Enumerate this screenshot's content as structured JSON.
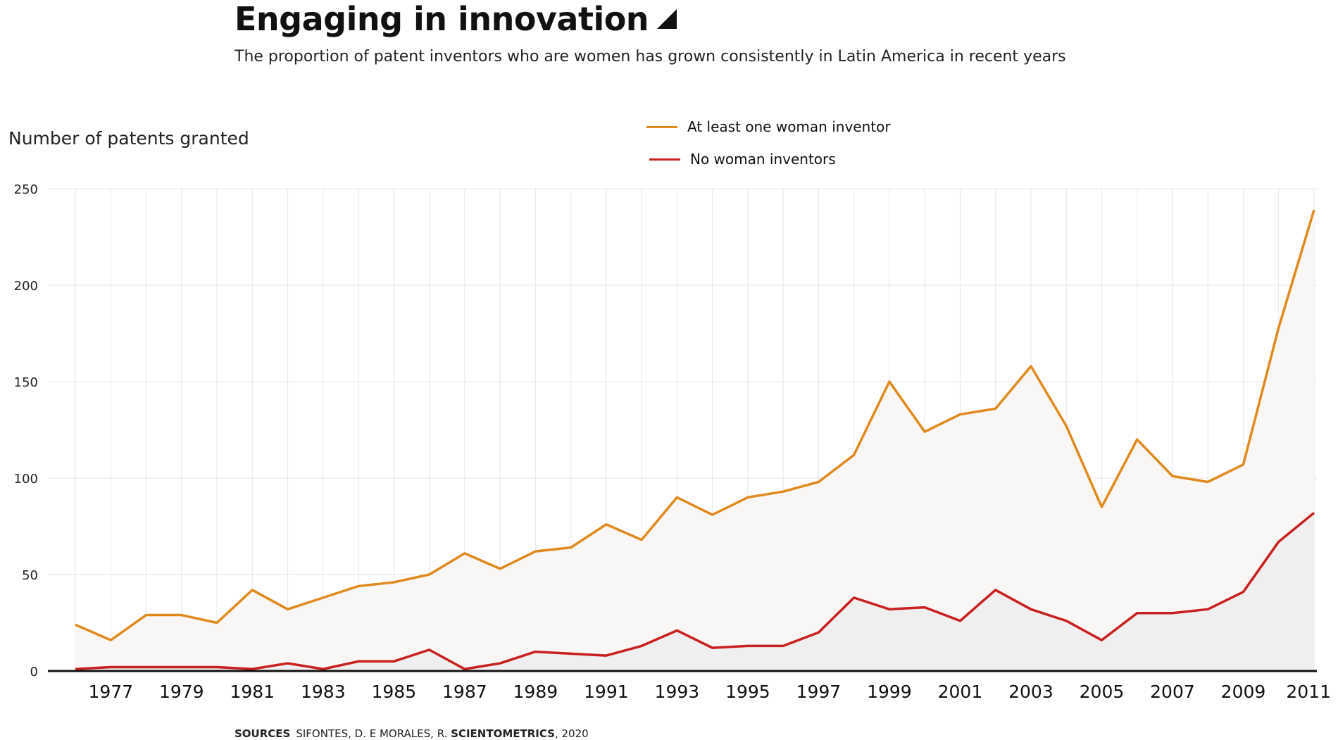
{
  "header": {
    "title": "Engaging in innovation",
    "subtitle": "The proportion of patent inventors who are women has grown consistently in Latin America in recent years"
  },
  "source": {
    "label": "SOURCES",
    "text": "SIFONTES, D. E MORALES, R.",
    "journal": "SCIENTOMETRICS",
    "year": ", 2020"
  },
  "colors": {
    "women": "#e08a1e",
    "no_women": "#c8201e",
    "grid": "#e6e6e6",
    "area_women": "#f8f7f5",
    "area_no_women": "#efefef"
  },
  "chart_data": {
    "type": "area",
    "title": "Engaging in innovation",
    "ylabel": "Number of patents granted",
    "xlabel": "",
    "ylim": [
      0,
      250
    ],
    "yticks": [
      0,
      50,
      100,
      150,
      200,
      250
    ],
    "x": [
      1976,
      1977,
      1978,
      1979,
      1980,
      1981,
      1982,
      1983,
      1984,
      1985,
      1986,
      1987,
      1988,
      1989,
      1990,
      1991,
      1992,
      1993,
      1994,
      1995,
      1996,
      1997,
      1998,
      1999,
      2000,
      2001,
      2002,
      2003,
      2004,
      2005,
      2006,
      2007,
      2008,
      2009,
      2010,
      2011
    ],
    "xtick_labels": [
      1977,
      1979,
      1981,
      1983,
      1985,
      1987,
      1989,
      1991,
      1993,
      1995,
      1997,
      1999,
      2001,
      2003,
      2005,
      2007,
      2009,
      2011
    ],
    "series": [
      {
        "name": "At least one woman inventor",
        "values": [
          24,
          16,
          29,
          29,
          25,
          42,
          32,
          38,
          44,
          46,
          50,
          61,
          53,
          62,
          64,
          76,
          68,
          90,
          81,
          90,
          93,
          98,
          112,
          150,
          124,
          133,
          136,
          158,
          127,
          85,
          120,
          101,
          98,
          107,
          178,
          239
        ]
      },
      {
        "name": "No woman inventors",
        "values": [
          1,
          2,
          2,
          2,
          2,
          1,
          4,
          1,
          5,
          5,
          11,
          1,
          4,
          10,
          9,
          8,
          13,
          21,
          12,
          13,
          13,
          20,
          38,
          32,
          33,
          26,
          42,
          32,
          26,
          16,
          30,
          30,
          32,
          41,
          67,
          82
        ]
      }
    ],
    "legend_position": "top-center"
  }
}
